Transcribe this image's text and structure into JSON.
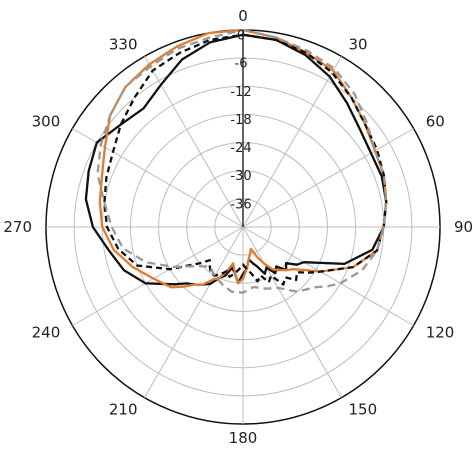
{
  "chart_data": {
    "type": "polar-line",
    "title": "",
    "angular_axis": {
      "unit": "degrees",
      "direction": "clockwise",
      "zero_at": "top",
      "ticks": [
        0,
        30,
        60,
        90,
        120,
        150,
        180,
        210,
        240,
        270,
        300,
        330
      ],
      "tick_labels": [
        "0",
        "30",
        "60",
        "90",
        "120",
        "150",
        "180",
        "210",
        "240",
        "270",
        "300",
        "330"
      ]
    },
    "radial_axis": {
      "range": [
        -42,
        0
      ],
      "ticks": [
        0,
        -6,
        -12,
        -18,
        -24,
        -30,
        -36
      ],
      "tick_labels": [
        "0",
        "-6",
        "-12",
        "-18",
        "-24",
        "-30",
        "-36"
      ],
      "grid": true
    },
    "series": [
      {
        "color": "#111111",
        "dash": "solid",
        "points": [
          [
            0,
            -1
          ],
          [
            10,
            -1.5
          ],
          [
            20,
            -3
          ],
          [
            30,
            -5
          ],
          [
            40,
            -7.5
          ],
          [
            50,
            -9.5
          ],
          [
            60,
            -10.5
          ],
          [
            70,
            -10.5
          ],
          [
            80,
            -11
          ],
          [
            90,
            -12
          ],
          [
            100,
            -14
          ],
          [
            110,
            -19
          ],
          [
            120,
            -27
          ],
          [
            125,
            -28
          ],
          [
            130,
            -30
          ],
          [
            135,
            -29
          ],
          [
            140,
            -31
          ],
          [
            145,
            -30
          ],
          [
            150,
            -32
          ],
          [
            155,
            -31
          ],
          [
            160,
            -33
          ],
          [
            165,
            -34
          ],
          [
            170,
            -35
          ],
          [
            175,
            -33
          ],
          [
            180,
            -32
          ],
          [
            185,
            -30
          ],
          [
            190,
            -32
          ],
          [
            195,
            -33
          ],
          [
            200,
            -31
          ],
          [
            205,
            -30
          ],
          [
            210,
            -28
          ],
          [
            215,
            -27
          ],
          [
            220,
            -26
          ],
          [
            225,
            -25
          ],
          [
            230,
            -23
          ],
          [
            240,
            -18
          ],
          [
            250,
            -15
          ],
          [
            260,
            -13
          ],
          [
            270,
            -10
          ],
          [
            280,
            -8
          ],
          [
            290,
            -7
          ],
          [
            300,
            -6
          ],
          [
            310,
            -8
          ],
          [
            320,
            -9
          ],
          [
            330,
            -7
          ],
          [
            340,
            -4
          ],
          [
            350,
            -2
          ],
          [
            360,
            -1
          ]
        ]
      },
      {
        "color": "#e07b30",
        "dash": "solid",
        "points": [
          [
            0,
            0
          ],
          [
            10,
            -1
          ],
          [
            20,
            -2.5
          ],
          [
            30,
            -3.5
          ],
          [
            40,
            -6
          ],
          [
            50,
            -8
          ],
          [
            60,
            -9.5
          ],
          [
            70,
            -10
          ],
          [
            80,
            -11
          ],
          [
            90,
            -12
          ],
          [
            100,
            -13
          ],
          [
            110,
            -17
          ],
          [
            120,
            -23
          ],
          [
            125,
            -26
          ],
          [
            130,
            -28
          ],
          [
            135,
            -29
          ],
          [
            140,
            -30
          ],
          [
            145,
            -31
          ],
          [
            150,
            -33
          ],
          [
            155,
            -35
          ],
          [
            160,
            -37
          ],
          [
            170,
            -35
          ],
          [
            175,
            -33
          ],
          [
            180,
            -31
          ],
          [
            185,
            -30
          ],
          [
            190,
            -32
          ],
          [
            195,
            -34
          ],
          [
            200,
            -32
          ],
          [
            205,
            -30
          ],
          [
            210,
            -29
          ],
          [
            215,
            -27
          ],
          [
            220,
            -26
          ],
          [
            225,
            -24
          ],
          [
            230,
            -22
          ],
          [
            240,
            -20
          ],
          [
            250,
            -17
          ],
          [
            260,
            -14
          ],
          [
            270,
            -12
          ],
          [
            280,
            -11
          ],
          [
            290,
            -10
          ],
          [
            300,
            -8
          ],
          [
            310,
            -5
          ],
          [
            320,
            -3
          ],
          [
            330,
            -2
          ],
          [
            340,
            -1
          ],
          [
            350,
            0
          ],
          [
            360,
            0
          ]
        ]
      },
      {
        "color": "#111111",
        "dash": "6,4",
        "points": [
          [
            0,
            -1
          ],
          [
            10,
            -1.5
          ],
          [
            20,
            -2.5
          ],
          [
            30,
            -4
          ],
          [
            40,
            -6
          ],
          [
            50,
            -8
          ],
          [
            60,
            -9
          ],
          [
            70,
            -10
          ],
          [
            80,
            -11
          ],
          [
            90,
            -12
          ],
          [
            100,
            -13
          ],
          [
            110,
            -17
          ],
          [
            120,
            -23
          ],
          [
            125,
            -25
          ],
          [
            130,
            -27
          ],
          [
            135,
            -26
          ],
          [
            140,
            -28
          ],
          [
            145,
            -27
          ],
          [
            150,
            -30
          ],
          [
            155,
            -29
          ],
          [
            160,
            -31
          ],
          [
            165,
            -30
          ],
          [
            170,
            -32
          ],
          [
            175,
            -33
          ],
          [
            180,
            -34
          ],
          [
            185,
            -33
          ],
          [
            190,
            -32
          ],
          [
            195,
            -31
          ],
          [
            200,
            -32
          ],
          [
            205,
            -31
          ],
          [
            210,
            -30
          ],
          [
            215,
            -30
          ],
          [
            220,
            -31
          ],
          [
            225,
            -32
          ],
          [
            230,
            -30
          ],
          [
            240,
            -24
          ],
          [
            250,
            -18
          ],
          [
            260,
            -15
          ],
          [
            270,
            -13
          ],
          [
            280,
            -12
          ],
          [
            290,
            -11
          ],
          [
            300,
            -10
          ],
          [
            310,
            -8
          ],
          [
            320,
            -6
          ],
          [
            330,
            -3.5
          ],
          [
            340,
            -2.5
          ],
          [
            350,
            -1.5
          ],
          [
            360,
            -1
          ]
        ]
      },
      {
        "color": "#999999",
        "dash": "8,5",
        "points": [
          [
            0,
            0
          ],
          [
            10,
            -1
          ],
          [
            20,
            -2
          ],
          [
            30,
            -3
          ],
          [
            40,
            -5
          ],
          [
            50,
            -7.5
          ],
          [
            60,
            -9.5
          ],
          [
            70,
            -10
          ],
          [
            80,
            -11
          ],
          [
            90,
            -12
          ],
          [
            100,
            -13
          ],
          [
            110,
            -15
          ],
          [
            120,
            -18
          ],
          [
            125,
            -20
          ],
          [
            130,
            -22
          ],
          [
            140,
            -24
          ],
          [
            150,
            -27
          ],
          [
            160,
            -28
          ],
          [
            170,
            -29
          ],
          [
            180,
            -28
          ],
          [
            190,
            -28
          ],
          [
            200,
            -29
          ],
          [
            210,
            -30
          ],
          [
            220,
            -31
          ],
          [
            230,
            -29
          ],
          [
            240,
            -25
          ],
          [
            250,
            -20
          ],
          [
            260,
            -16
          ],
          [
            270,
            -14
          ],
          [
            280,
            -12
          ],
          [
            290,
            -9
          ],
          [
            300,
            -7
          ],
          [
            310,
            -5
          ],
          [
            320,
            -3
          ],
          [
            330,
            -2.5
          ],
          [
            340,
            -1.5
          ],
          [
            350,
            -1
          ],
          [
            360,
            0
          ]
        ]
      }
    ]
  }
}
